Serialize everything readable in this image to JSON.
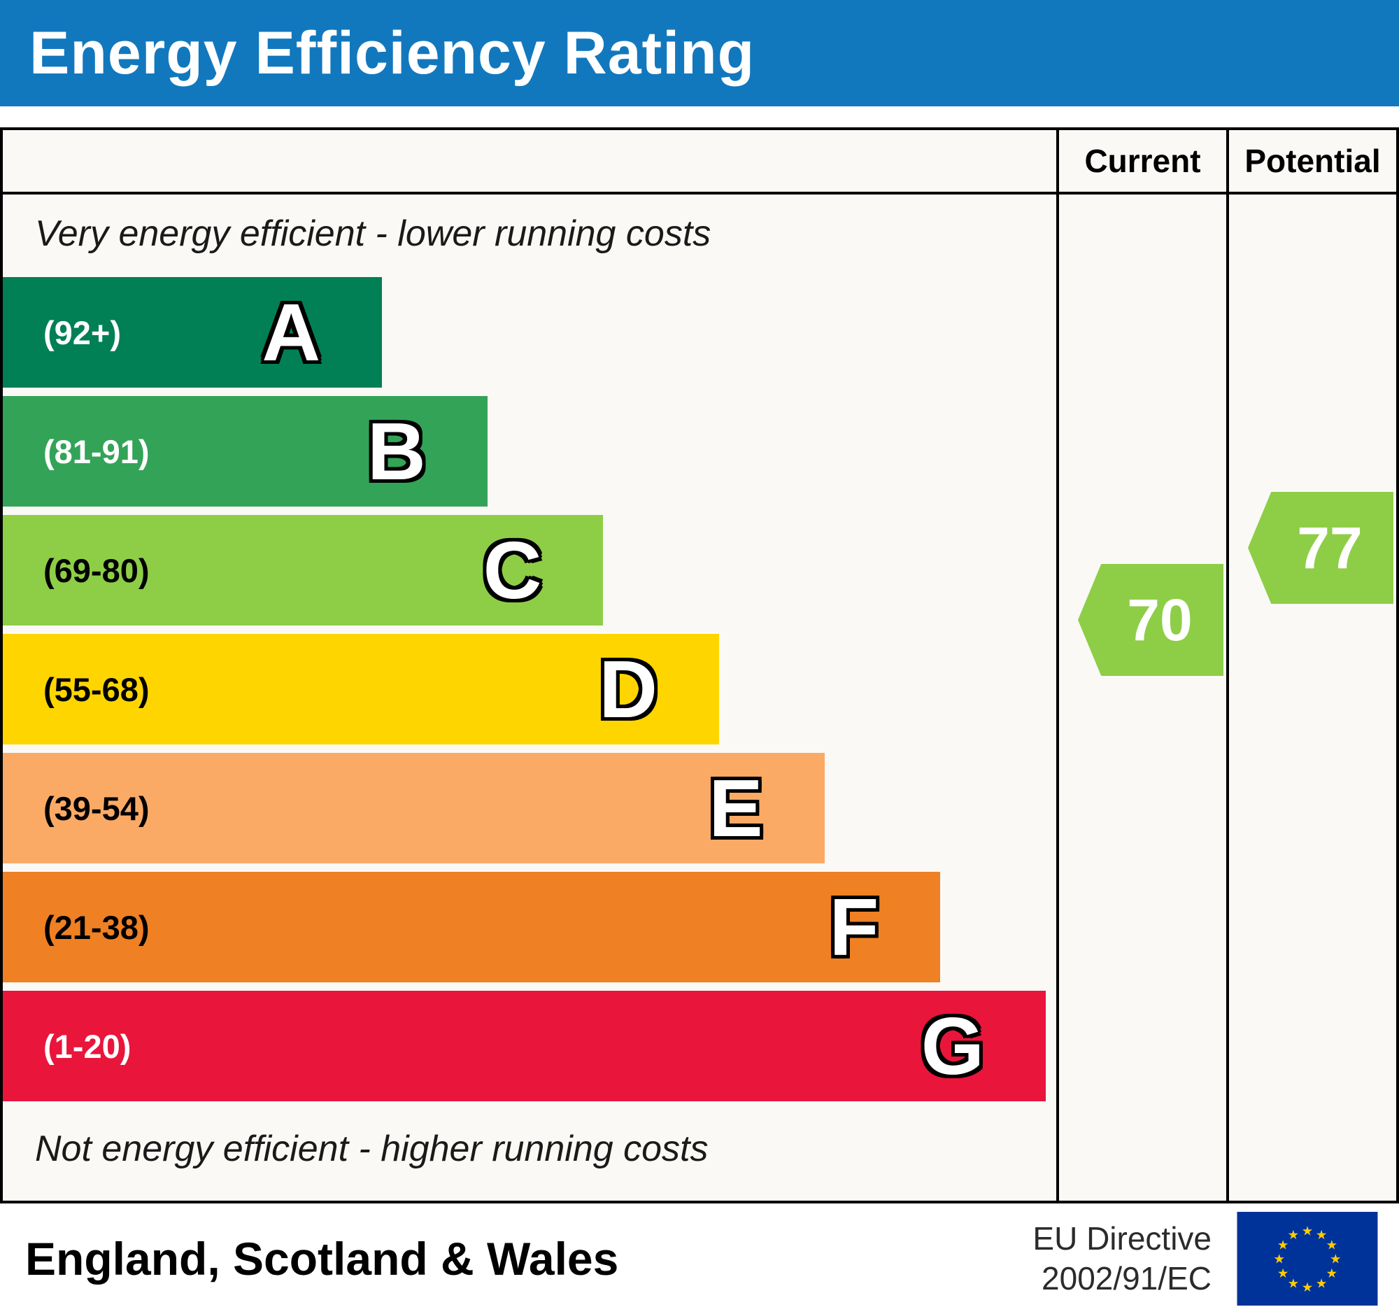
{
  "header": {
    "title": "Energy Efficiency Rating",
    "background": "#1278be"
  },
  "columns": {
    "current_label": "Current",
    "potential_label": "Potential"
  },
  "notes": {
    "top": "Very energy efficient - lower running costs",
    "bottom": "Not energy efficient - higher running costs"
  },
  "bands": [
    {
      "letter": "A",
      "range": "(92+)",
      "color": "#008054",
      "label_color": "#ffffff",
      "width_pct": 36
    },
    {
      "letter": "B",
      "range": "(81-91)",
      "color": "#33a357",
      "label_color": "#ffffff",
      "width_pct": 46
    },
    {
      "letter": "C",
      "range": "(69-80)",
      "color": "#8dce46",
      "label_color": "#000000",
      "width_pct": 57
    },
    {
      "letter": "D",
      "range": "(55-68)",
      "color": "#ffd500",
      "label_color": "#000000",
      "width_pct": 68
    },
    {
      "letter": "E",
      "range": "(39-54)",
      "color": "#fbaa65",
      "label_color": "#000000",
      "width_pct": 78
    },
    {
      "letter": "F",
      "range": "(21-38)",
      "color": "#ef8023",
      "label_color": "#000000",
      "width_pct": 89
    },
    {
      "letter": "G",
      "range": "(1-20)",
      "color": "#e9153b",
      "label_color": "#ffffff",
      "width_pct": 99
    }
  ],
  "ratings": {
    "current": {
      "value": "70",
      "color": "#8dce46"
    },
    "potential": {
      "value": "77",
      "color": "#8dce46"
    }
  },
  "footer": {
    "region": "England, Scotland & Wales",
    "directive_line1": "EU Directive",
    "directive_line2": "2002/91/EC",
    "flag_blue": "#003399",
    "flag_star": "#ffcc00"
  },
  "chart_data": {
    "type": "bar",
    "title": "Energy Efficiency Rating",
    "categories": [
      "A (92+)",
      "B (81-91)",
      "C (69-80)",
      "D (55-68)",
      "E (39-54)",
      "F (21-38)",
      "G (1-20)"
    ],
    "values": [
      36,
      46,
      57,
      68,
      78,
      89,
      99
    ],
    "series": [
      {
        "name": "Current rating",
        "value": 70,
        "band": "C"
      },
      {
        "name": "Potential rating",
        "value": 77,
        "band": "C"
      }
    ],
    "xlabel": "",
    "ylabel": "",
    "annotations": [
      "Very energy efficient - lower running costs",
      "Not energy efficient - higher running costs",
      "England, Scotland & Wales",
      "EU Directive 2002/91/EC"
    ],
    "legend_position": "none",
    "grid": false
  }
}
